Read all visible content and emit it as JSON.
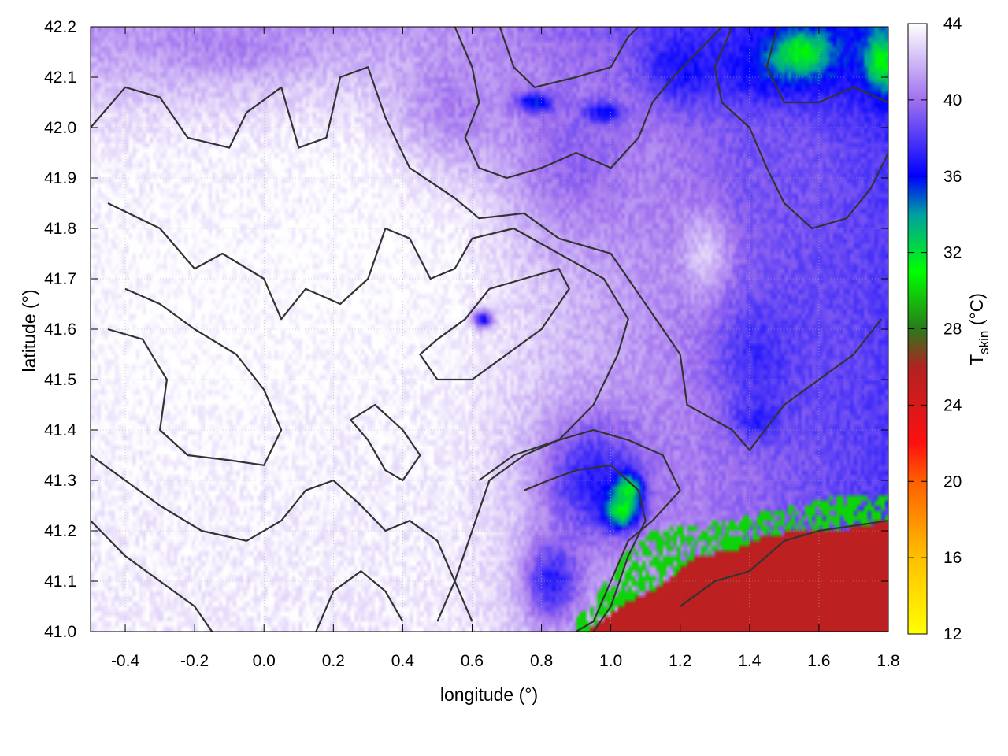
{
  "chart_data": {
    "type": "heatmap",
    "title": "",
    "xlabel": "longitude (°)",
    "ylabel": "latitude (°)",
    "colorbar_label": {
      "main": "T",
      "sub": "skin",
      "unit": " (°C)"
    },
    "xlim": [
      -0.5,
      1.8
    ],
    "ylim": [
      41.0,
      42.2
    ],
    "x_ticks": [
      "-0.4",
      "-0.2",
      "0.0",
      "0.2",
      "0.4",
      "0.6",
      "0.8",
      "1.0",
      "1.2",
      "1.4",
      "1.6",
      "1.8"
    ],
    "x_tick_values": [
      -0.4,
      -0.2,
      0.0,
      0.2,
      0.4,
      0.6,
      0.8,
      1.0,
      1.2,
      1.4,
      1.6,
      1.8
    ],
    "y_ticks": [
      "41.0",
      "41.1",
      "41.2",
      "41.3",
      "41.4",
      "41.5",
      "41.6",
      "41.7",
      "41.8",
      "41.9",
      "42.0",
      "42.1",
      "42.2"
    ],
    "y_tick_values": [
      41.0,
      41.1,
      41.2,
      41.3,
      41.4,
      41.5,
      41.6,
      41.7,
      41.8,
      41.9,
      42.0,
      42.1,
      42.2
    ],
    "colorbar_range": [
      12,
      44
    ],
    "colorbar_ticks": [
      "12",
      "16",
      "20",
      "24",
      "28",
      "32",
      "36",
      "40",
      "44"
    ],
    "colorbar_tick_values": [
      12,
      16,
      20,
      24,
      28,
      32,
      36,
      40,
      44
    ],
    "colormap": [
      {
        "v": 12,
        "c": "#ffff00"
      },
      {
        "v": 16,
        "c": "#ffc000"
      },
      {
        "v": 20,
        "c": "#ff6000"
      },
      {
        "v": 22,
        "c": "#ff1010"
      },
      {
        "v": 26,
        "c": "#b22222"
      },
      {
        "v": 28,
        "c": "#2a7a1a"
      },
      {
        "v": 31,
        "c": "#00ff00"
      },
      {
        "v": 34,
        "c": "#00a0a0"
      },
      {
        "v": 36,
        "c": "#0000ff"
      },
      {
        "v": 40,
        "c": "#a070ee"
      },
      {
        "v": 44,
        "c": "#ffffff"
      }
    ],
    "grid": true,
    "sea_region": {
      "value": 25.5,
      "color": "#b22222",
      "coastline": [
        [
          0.93,
          41.0
        ],
        [
          1.05,
          41.06
        ],
        [
          1.12,
          41.08
        ],
        [
          1.25,
          41.15
        ],
        [
          1.35,
          41.16
        ],
        [
          1.45,
          41.19
        ],
        [
          1.55,
          41.2
        ],
        [
          1.65,
          41.2
        ],
        [
          1.8,
          41.22
        ]
      ]
    },
    "coastal_band": {
      "value": 30,
      "color": "#22cc22",
      "coastline": [
        [
          0.9,
          41.02
        ],
        [
          0.98,
          41.1
        ],
        [
          1.05,
          41.16
        ],
        [
          1.12,
          41.2
        ],
        [
          1.22,
          41.21
        ],
        [
          1.35,
          41.22
        ],
        [
          1.45,
          41.24
        ],
        [
          1.55,
          41.25
        ],
        [
          1.65,
          41.27
        ],
        [
          1.8,
          41.27
        ]
      ]
    },
    "temperature_features": [
      {
        "lon": -0.2,
        "lat": 41.6,
        "rx": 0.6,
        "ry": 0.45,
        "value": 44
      },
      {
        "lon": 0.3,
        "lat": 41.75,
        "rx": 0.5,
        "ry": 0.4,
        "value": 44
      },
      {
        "lon": 0.55,
        "lat": 42.05,
        "rx": 0.25,
        "ry": 0.2,
        "value": 40.5
      },
      {
        "lon": 0.9,
        "lat": 41.95,
        "rx": 0.3,
        "ry": 0.25,
        "value": 39.5
      },
      {
        "lon": -0.1,
        "lat": 42.16,
        "rx": 0.35,
        "ry": 0.08,
        "value": 40.5
      },
      {
        "lon": 1.45,
        "lat": 41.95,
        "rx": 0.3,
        "ry": 0.3,
        "value": 39
      },
      {
        "lon": 1.45,
        "lat": 41.55,
        "rx": 0.2,
        "ry": 0.15,
        "value": 37
      },
      {
        "lon": 1.6,
        "lat": 41.6,
        "rx": 0.25,
        "ry": 0.3,
        "value": 38.5
      },
      {
        "lon": 0.95,
        "lat": 41.3,
        "rx": 0.22,
        "ry": 0.18,
        "value": 37
      },
      {
        "lon": 1.05,
        "lat": 41.28,
        "rx": 0.06,
        "ry": 0.05,
        "value": 31.5
      },
      {
        "lon": 1.03,
        "lat": 41.24,
        "rx": 0.07,
        "ry": 0.05,
        "value": 31
      },
      {
        "lon": 0.83,
        "lat": 41.1,
        "rx": 0.12,
        "ry": 0.12,
        "value": 37
      },
      {
        "lon": 1.2,
        "lat": 42.12,
        "rx": 0.15,
        "ry": 0.1,
        "value": 36.5
      },
      {
        "lon": 1.5,
        "lat": 42.12,
        "rx": 0.28,
        "ry": 0.1,
        "value": 35.5
      },
      {
        "lon": 1.55,
        "lat": 42.15,
        "rx": 0.12,
        "ry": 0.06,
        "value": 31
      },
      {
        "lon": 1.78,
        "lat": 42.13,
        "rx": 0.07,
        "ry": 0.08,
        "value": 31
      },
      {
        "lon": 0.78,
        "lat": 42.05,
        "rx": 0.08,
        "ry": 0.03,
        "value": 35.5
      },
      {
        "lon": 0.98,
        "lat": 42.03,
        "rx": 0.08,
        "ry": 0.03,
        "value": 36
      },
      {
        "lon": 0.63,
        "lat": 41.62,
        "rx": 0.04,
        "ry": 0.025,
        "value": 36
      },
      {
        "lon": 1.42,
        "lat": 41.42,
        "rx": 0.1,
        "ry": 0.06,
        "value": 37
      },
      {
        "lon": 1.27,
        "lat": 41.75,
        "rx": 0.1,
        "ry": 0.12,
        "value": 42.5
      }
    ],
    "contours": [
      [
        [
          -0.5,
          42.0
        ],
        [
          -0.4,
          42.08
        ],
        [
          -0.3,
          42.06
        ],
        [
          -0.22,
          41.98
        ],
        [
          -0.1,
          41.96
        ],
        [
          -0.05,
          42.03
        ],
        [
          0.05,
          42.08
        ],
        [
          0.1,
          41.96
        ],
        [
          0.18,
          41.98
        ],
        [
          0.22,
          42.1
        ],
        [
          0.3,
          42.12
        ],
        [
          0.35,
          42.02
        ],
        [
          0.42,
          41.92
        ],
        [
          0.55,
          41.86
        ],
        [
          0.62,
          41.82
        ],
        [
          0.75,
          41.83
        ],
        [
          0.85,
          41.78
        ],
        [
          1.0,
          41.75
        ],
        [
          1.1,
          41.65
        ],
        [
          1.2,
          41.55
        ],
        [
          1.22,
          41.45
        ],
        [
          1.35,
          41.4
        ],
        [
          1.4,
          41.36
        ],
        [
          1.5,
          41.45
        ],
        [
          1.6,
          41.5
        ],
        [
          1.7,
          41.55
        ],
        [
          1.78,
          41.62
        ]
      ],
      [
        [
          -0.45,
          41.85
        ],
        [
          -0.3,
          41.8
        ],
        [
          -0.2,
          41.72
        ],
        [
          -0.12,
          41.75
        ],
        [
          0.0,
          41.7
        ],
        [
          0.05,
          41.62
        ],
        [
          0.12,
          41.68
        ],
        [
          0.22,
          41.65
        ],
        [
          0.3,
          41.7
        ],
        [
          0.35,
          41.8
        ],
        [
          0.42,
          41.78
        ],
        [
          0.48,
          41.7
        ],
        [
          0.55,
          41.72
        ],
        [
          0.6,
          41.78
        ],
        [
          0.72,
          41.8
        ],
        [
          0.85,
          41.75
        ],
        [
          0.98,
          41.7
        ],
        [
          1.05,
          41.62
        ],
        [
          1.02,
          41.55
        ],
        [
          0.95,
          41.45
        ],
        [
          0.85,
          41.38
        ],
        [
          0.75,
          41.35
        ],
        [
          0.65,
          41.3
        ],
        [
          0.6,
          41.2
        ],
        [
          0.55,
          41.1
        ],
        [
          0.5,
          41.02
        ]
      ],
      [
        [
          -0.45,
          41.6
        ],
        [
          -0.35,
          41.58
        ],
        [
          -0.28,
          41.5
        ],
        [
          -0.3,
          41.4
        ],
        [
          -0.22,
          41.35
        ],
        [
          -0.1,
          41.34
        ],
        [
          0.0,
          41.33
        ],
        [
          0.05,
          41.4
        ],
        [
          0.0,
          41.48
        ],
        [
          -0.08,
          41.55
        ],
        [
          -0.2,
          41.6
        ],
        [
          -0.3,
          41.65
        ],
        [
          -0.4,
          41.68
        ]
      ],
      [
        [
          -0.5,
          41.35
        ],
        [
          -0.4,
          41.3
        ],
        [
          -0.3,
          41.25
        ],
        [
          -0.18,
          41.2
        ],
        [
          -0.05,
          41.18
        ],
        [
          0.05,
          41.22
        ],
        [
          0.12,
          41.28
        ],
        [
          0.2,
          41.3
        ],
        [
          0.28,
          41.25
        ],
        [
          0.35,
          41.2
        ],
        [
          0.42,
          41.22
        ],
        [
          0.5,
          41.18
        ],
        [
          0.55,
          41.1
        ],
        [
          0.6,
          41.02
        ]
      ],
      [
        [
          -0.5,
          41.22
        ],
        [
          -0.4,
          41.15
        ],
        [
          -0.3,
          41.1
        ],
        [
          -0.2,
          41.05
        ],
        [
          -0.15,
          41.0
        ]
      ],
      [
        [
          0.15,
          41.0
        ],
        [
          0.2,
          41.08
        ],
        [
          0.28,
          41.12
        ],
        [
          0.35,
          41.08
        ],
        [
          0.4,
          41.02
        ]
      ],
      [
        [
          0.6,
          41.5
        ],
        [
          0.7,
          41.55
        ],
        [
          0.8,
          41.6
        ],
        [
          0.88,
          41.68
        ],
        [
          0.85,
          41.72
        ],
        [
          0.75,
          41.7
        ],
        [
          0.65,
          41.68
        ],
        [
          0.58,
          41.62
        ],
        [
          0.5,
          41.58
        ],
        [
          0.45,
          41.55
        ],
        [
          0.5,
          41.5
        ],
        [
          0.6,
          41.5
        ]
      ],
      [
        [
          0.62,
          41.3
        ],
        [
          0.72,
          41.35
        ],
        [
          0.85,
          41.38
        ],
        [
          0.95,
          41.4
        ],
        [
          1.05,
          41.38
        ],
        [
          1.15,
          41.35
        ],
        [
          1.2,
          41.28
        ],
        [
          1.12,
          41.22
        ],
        [
          1.05,
          41.18
        ],
        [
          1.0,
          41.1
        ],
        [
          0.95,
          41.02
        ],
        [
          0.9,
          41.0
        ]
      ],
      [
        [
          0.75,
          41.28
        ],
        [
          0.82,
          41.3
        ],
        [
          0.9,
          41.32
        ],
        [
          1.0,
          41.33
        ],
        [
          1.08,
          41.28
        ],
        [
          1.1,
          41.22
        ],
        [
          1.05,
          41.15
        ],
        [
          1.0,
          41.05
        ],
        [
          0.95,
          41.0
        ]
      ],
      [
        [
          0.55,
          42.2
        ],
        [
          0.6,
          42.12
        ],
        [
          0.62,
          42.05
        ],
        [
          0.58,
          41.98
        ],
        [
          0.62,
          41.92
        ],
        [
          0.7,
          41.9
        ],
        [
          0.8,
          41.92
        ],
        [
          0.9,
          41.95
        ],
        [
          1.0,
          41.92
        ],
        [
          1.08,
          41.98
        ],
        [
          1.12,
          42.05
        ],
        [
          1.18,
          42.1
        ],
        [
          1.25,
          42.15
        ],
        [
          1.32,
          42.2
        ]
      ],
      [
        [
          0.68,
          42.2
        ],
        [
          0.72,
          42.12
        ],
        [
          0.78,
          42.08
        ],
        [
          0.9,
          42.1
        ],
        [
          1.0,
          42.12
        ],
        [
          1.05,
          42.18
        ],
        [
          1.08,
          42.2
        ]
      ],
      [
        [
          1.35,
          42.2
        ],
        [
          1.3,
          42.12
        ],
        [
          1.32,
          42.05
        ],
        [
          1.4,
          42.0
        ],
        [
          1.45,
          41.92
        ],
        [
          1.5,
          41.85
        ],
        [
          1.58,
          41.8
        ],
        [
          1.68,
          41.82
        ],
        [
          1.75,
          41.88
        ],
        [
          1.8,
          41.95
        ]
      ],
      [
        [
          1.48,
          42.2
        ],
        [
          1.45,
          42.12
        ],
        [
          1.5,
          42.05
        ],
        [
          1.6,
          42.05
        ],
        [
          1.7,
          42.08
        ],
        [
          1.8,
          42.05
        ]
      ],
      [
        [
          1.2,
          41.05
        ],
        [
          1.3,
          41.1
        ],
        [
          1.4,
          41.12
        ],
        [
          1.5,
          41.18
        ],
        [
          1.6,
          41.2
        ],
        [
          1.7,
          41.21
        ],
        [
          1.8,
          41.22
        ]
      ],
      [
        [
          0.25,
          41.42
        ],
        [
          0.3,
          41.38
        ],
        [
          0.35,
          41.32
        ],
        [
          0.4,
          41.3
        ],
        [
          0.45,
          41.35
        ],
        [
          0.4,
          41.4
        ],
        [
          0.32,
          41.45
        ],
        [
          0.25,
          41.42
        ]
      ]
    ]
  }
}
